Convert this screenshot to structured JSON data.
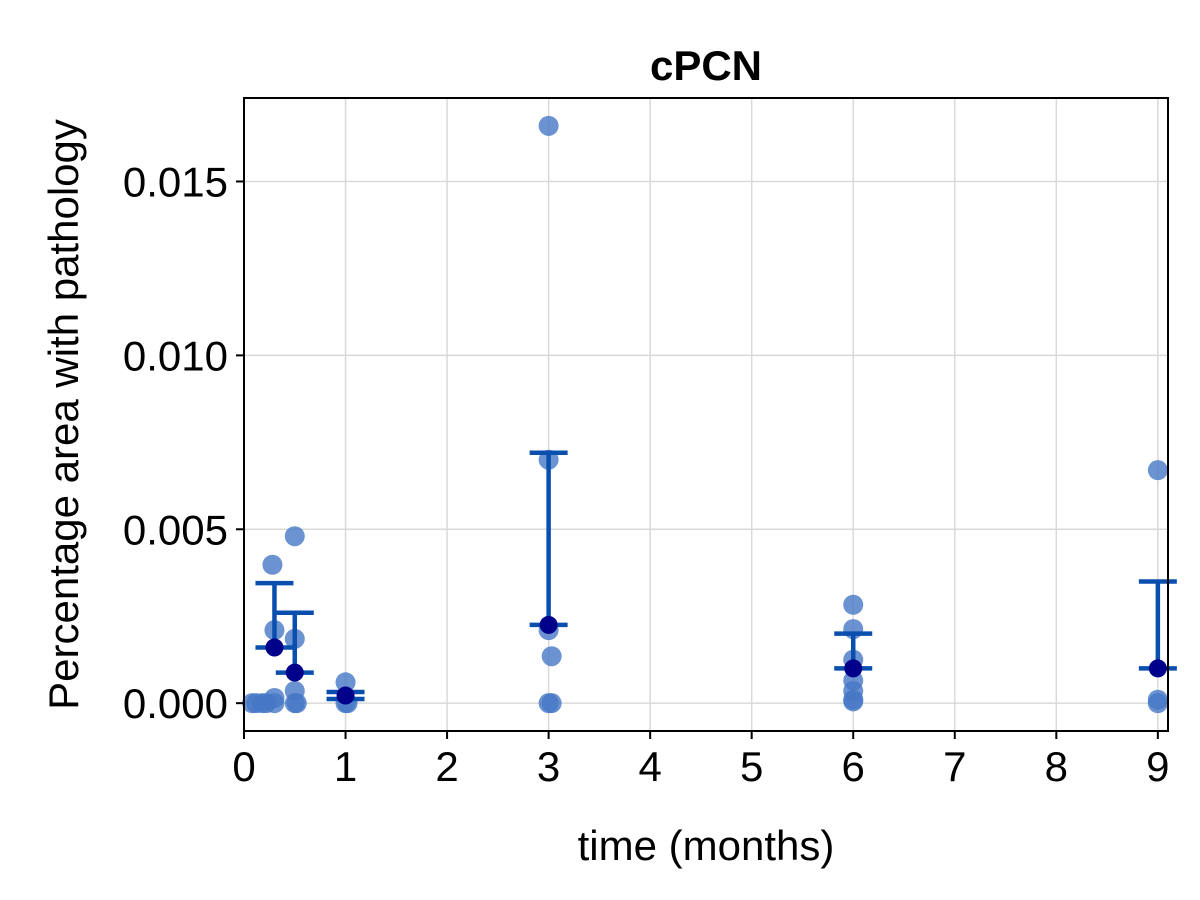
{
  "chart_data": {
    "type": "scatter",
    "title": "cPCN",
    "xlabel": "time (months)",
    "ylabel": "Percentage area with pathology",
    "xlim": [
      0,
      9.1
    ],
    "ylim": [
      -0.0008,
      0.0174
    ],
    "x_ticks": [
      0,
      1,
      2,
      3,
      4,
      5,
      6,
      7,
      8,
      9
    ],
    "x_tick_labels": [
      "0",
      "1",
      "2",
      "3",
      "4",
      "5",
      "6",
      "7",
      "8",
      "9"
    ],
    "y_ticks": [
      0.0,
      0.005,
      0.01,
      0.015
    ],
    "y_tick_labels": [
      "0.000",
      "0.005",
      "0.010",
      "0.015"
    ],
    "grid": true,
    "legend": "none",
    "colors": {
      "points": "#4677c6",
      "mean": "#00008b",
      "errorbar": "#0a4fae",
      "grid": "#d9d9d9",
      "axis": "#000000"
    },
    "series": [
      {
        "role": "individual-points",
        "points": [
          {
            "x": 0.08,
            "y": 0.0
          },
          {
            "x": 0.12,
            "y": 0.0
          },
          {
            "x": 0.18,
            "y": 0.0
          },
          {
            "x": 0.22,
            "y": 0.0
          },
          {
            "x": 0.28,
            "y": 0.00398
          },
          {
            "x": 0.3,
            "y": 0.0021
          },
          {
            "x": 0.3,
            "y": 0.00015
          },
          {
            "x": 0.3,
            "y": 0.0
          },
          {
            "x": 0.5,
            "y": 0.0048
          },
          {
            "x": 0.5,
            "y": 0.00185
          },
          {
            "x": 0.5,
            "y": 0.00035
          },
          {
            "x": 0.5,
            "y": 0.0
          },
          {
            "x": 0.52,
            "y": 0.0
          },
          {
            "x": 1.0,
            "y": 0.0006
          },
          {
            "x": 1.0,
            "y": 0.0
          },
          {
            "x": 1.02,
            "y": 0.0
          },
          {
            "x": 3.0,
            "y": 0.0166
          },
          {
            "x": 3.0,
            "y": 0.007
          },
          {
            "x": 3.0,
            "y": 0.0021
          },
          {
            "x": 3.03,
            "y": 0.00135
          },
          {
            "x": 3.0,
            "y": 0.0
          },
          {
            "x": 3.03,
            "y": 0.0
          },
          {
            "x": 6.0,
            "y": 0.00283
          },
          {
            "x": 6.0,
            "y": 0.00213
          },
          {
            "x": 6.0,
            "y": 0.00125
          },
          {
            "x": 6.0,
            "y": 0.00065
          },
          {
            "x": 6.0,
            "y": 0.00035
          },
          {
            "x": 6.0,
            "y": 0.0001
          },
          {
            "x": 6.0,
            "y": 5e-05
          },
          {
            "x": 9.0,
            "y": 0.0067
          },
          {
            "x": 9.0,
            "y": 0.0001
          },
          {
            "x": 9.0,
            "y": 0.0
          }
        ]
      },
      {
        "role": "mean-with-error",
        "points": [
          {
            "x": 0.3,
            "mean": 0.0016,
            "lower": 0.0016,
            "upper": 0.00345
          },
          {
            "x": 0.5,
            "mean": 0.00088,
            "lower": 0.00088,
            "upper": 0.0026
          },
          {
            "x": 1.0,
            "mean": 0.00022,
            "lower": 0.00012,
            "upper": 0.00032
          },
          {
            "x": 3.0,
            "mean": 0.00225,
            "lower": 0.00225,
            "upper": 0.0072
          },
          {
            "x": 6.0,
            "mean": 0.001,
            "lower": 0.001,
            "upper": 0.002
          },
          {
            "x": 9.0,
            "mean": 0.001,
            "lower": 0.001,
            "upper": 0.0035
          }
        ]
      }
    ]
  }
}
